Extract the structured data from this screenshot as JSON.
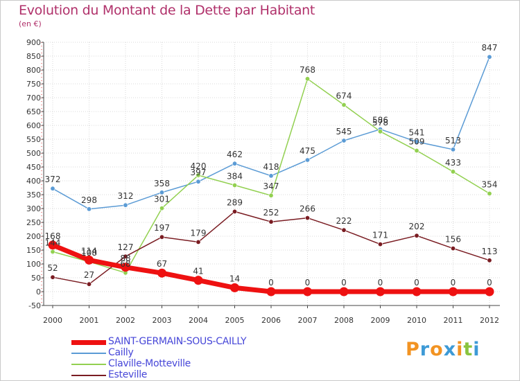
{
  "title": "Evolution du Montant de la Dette par Habitant",
  "subtitle": "(en €)",
  "logo": {
    "text": "Proxiti",
    "letters": [
      "P",
      "r",
      "o",
      "x",
      "i",
      "t",
      "i"
    ],
    "colors": [
      "#f29322",
      "#3d9ad6",
      "#f29322",
      "#3d9ad6",
      "#f29322",
      "#8ac43f",
      "#3d9ad6"
    ]
  },
  "chart_data": {
    "type": "line",
    "x": [
      "2000",
      "2001",
      "2002",
      "2003",
      "2004",
      "2005",
      "2006",
      "2007",
      "2008",
      "2009",
      "2010",
      "2011",
      "2012"
    ],
    "ylim": [
      -50,
      900
    ],
    "yticks": [
      -50,
      0,
      50,
      100,
      150,
      200,
      250,
      300,
      350,
      400,
      450,
      500,
      550,
      600,
      650,
      700,
      750,
      800,
      850,
      900
    ],
    "grid": true,
    "legend_position": "bottom",
    "series": [
      {
        "name": "SAINT-GERMAIN-SOUS-CAILLY",
        "color": "#ee1111",
        "width": 7,
        "values": [
          168,
          114,
          88,
          67,
          41,
          14,
          0,
          0,
          0,
          0,
          0,
          0,
          0
        ]
      },
      {
        "name": "Cailly",
        "color": "#5b9bd5",
        "width": 1.5,
        "values": [
          372,
          298,
          312,
          358,
          397,
          462,
          418,
          475,
          545,
          586,
          541,
          513,
          847
        ]
      },
      {
        "name": "Claville-Motteville",
        "color": "#92d050",
        "width": 1.5,
        "values": [
          144,
          108,
          68,
          301,
          420,
          384,
          347,
          768,
          674,
          578,
          509,
          433,
          354
        ]
      },
      {
        "name": "Esteville",
        "color": "#7a1c22",
        "width": 1.5,
        "values": [
          52,
          27,
          127,
          197,
          179,
          289,
          252,
          266,
          222,
          171,
          202,
          156,
          113
        ]
      }
    ]
  }
}
